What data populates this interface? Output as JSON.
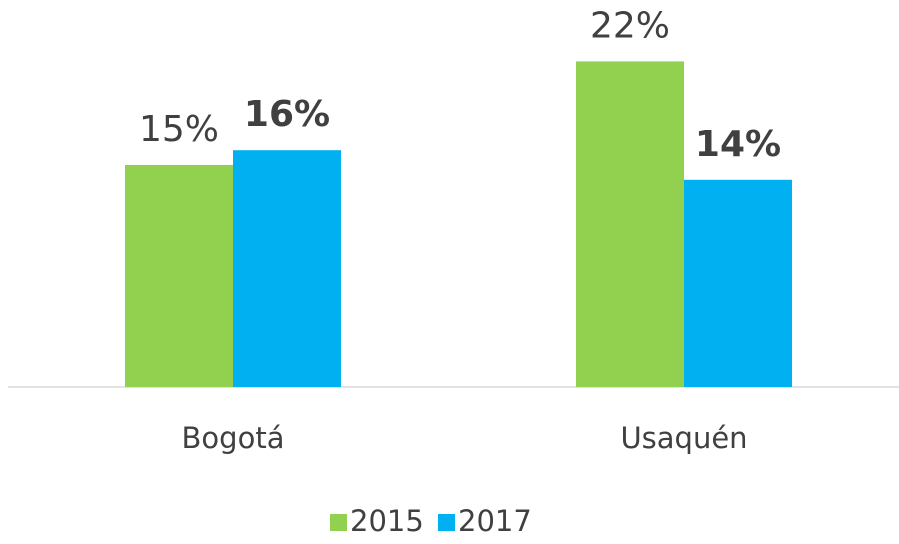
{
  "chart_data": {
    "type": "bar",
    "categories": [
      "Bogotá",
      "Usaquén"
    ],
    "series": [
      {
        "name": "2015",
        "color": "#92d050",
        "values": [
          15,
          22
        ],
        "value_labels": [
          "15%",
          "22%"
        ],
        "bold_labels": false
      },
      {
        "name": "2017",
        "color": "#00b0f0",
        "values": [
          16,
          14
        ],
        "value_labels": [
          "16%",
          "14%"
        ],
        "bold_labels": true
      }
    ],
    "legend": "bottom"
  }
}
